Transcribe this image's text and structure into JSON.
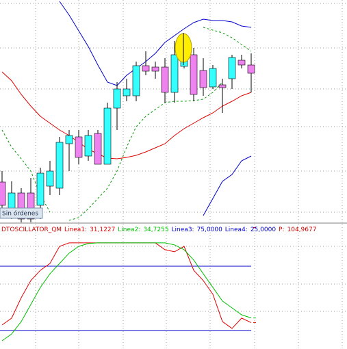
{
  "status_label": "Sin órdenes",
  "chart_data": [
    {
      "type": "candlestick",
      "ylim": [
        0,
        325
      ],
      "up_color": "#33ffff",
      "down_color": "#ee82ee",
      "open": [
        59,
        20,
        43,
        43,
        25,
        53,
        50,
        115,
        125,
        97,
        130,
        85,
        167,
        185,
        185,
        229,
        227,
        227,
        190,
        228,
        245,
        222,
        198,
        201,
        210,
        237,
        230
      ],
      "close": [
        25,
        43,
        5,
        5,
        72,
        75,
        117,
        127,
        95,
        127,
        85,
        167,
        195,
        195,
        229,
        221,
        221,
        190,
        245,
        250,
        187,
        197,
        225,
        197,
        241,
        230,
        218
      ],
      "high": [
        75,
        60,
        50,
        65,
        80,
        90,
        125,
        135,
        135,
        135,
        135,
        175,
        205,
        210,
        235,
        250,
        235,
        240,
        265,
        265,
        255,
        240,
        230,
        210,
        245,
        245,
        247
      ],
      "low": [
        15,
        5,
        0,
        0,
        5,
        40,
        40,
        75,
        85,
        90,
        85,
        85,
        135,
        177,
        177,
        215,
        210,
        175,
        175,
        225,
        177,
        185,
        195,
        160,
        195,
        225,
        190
      ],
      "series": [
        {
          "color": "#0000cc",
          "dash": false,
          "values": [
            null,
            null,
            null,
            null,
            null,
            null,
            323,
            303,
            280,
            257,
            230,
            205,
            200,
            215,
            225,
            235,
            247,
            263,
            273,
            283,
            292,
            297,
            295,
            295,
            293,
            287,
            285
          ]
        },
        {
          "color": "#0000cc",
          "dash": false,
          "values": [
            null,
            null,
            null,
            null,
            null,
            null,
            null,
            null,
            null,
            null,
            null,
            null,
            null,
            null,
            null,
            null,
            null,
            null,
            null,
            null,
            null,
            10,
            35,
            60,
            70,
            90,
            97
          ]
        },
        {
          "color": "#e00000",
          "dash": false,
          "values": [
            220,
            207,
            187,
            170,
            155,
            145,
            135,
            127,
            117,
            107,
            100,
            94,
            93,
            95,
            98,
            103,
            109,
            115,
            127,
            137,
            145,
            153,
            160,
            170,
            177,
            185,
            190
          ]
        },
        {
          "color": "#009900",
          "dash": true,
          "values": [
            135,
            110,
            93,
            75,
            40,
            15,
            null,
            3,
            7,
            20,
            35,
            50,
            75,
            110,
            140,
            155,
            165,
            175,
            177,
            177,
            178,
            180,
            190,
            205,
            null,
            null,
            null
          ]
        },
        {
          "color": "#009900",
          "dash": true,
          "values": [
            null,
            null,
            null,
            null,
            null,
            null,
            null,
            null,
            null,
            null,
            null,
            null,
            null,
            null,
            null,
            null,
            null,
            null,
            null,
            null,
            null,
            285,
            281,
            277,
            270,
            260,
            250
          ]
        }
      ]
    },
    {
      "type": "line",
      "title": "DTOSCILLATOR_QM",
      "title_color": "#d00000",
      "ylim": [
        10.6,
        105.3
      ],
      "series": [
        {
          "name": "Linea1:",
          "value": 31.1227,
          "label": "31,1227",
          "color": "#e00000",
          "values": [
            29.3,
            34.6,
            50.5,
            63.8,
            71.8,
            77.1,
            90.4,
            93.1,
            93.1,
            93.1,
            93.1,
            93.1,
            93.1,
            93.1,
            93.1,
            93.1,
            93.1,
            87.8,
            86.2,
            90.4,
            71.8,
            63.8,
            53.2,
            31.9,
            26.6,
            34.6,
            31.1227
          ]
        },
        {
          "name": "Linea2:",
          "value": 34.7255,
          "label": "34,7255",
          "color": "#00c000",
          "values": [
            17.0,
            22.3,
            31.9,
            45.2,
            58.5,
            69.1,
            77.1,
            85.1,
            90.4,
            92.6,
            93.1,
            93.1,
            93.1,
            93.1,
            93.1,
            93.1,
            93.1,
            93.1,
            91.5,
            87.8,
            79.8,
            69.1,
            58.5,
            47.9,
            42.6,
            37.2,
            34.7255
          ]
        }
      ],
      "levels": [
        {
          "name": "Linea3:",
          "value": 75,
          "label": "75,0000",
          "color": "#0000cc"
        },
        {
          "name": "Linea4:",
          "value": 25,
          "label": "25,0000",
          "color": "#0000cc"
        }
      ],
      "extra": {
        "name": "P:",
        "value": 104.9677,
        "label": "104,9677",
        "color": "#d00000"
      }
    }
  ]
}
